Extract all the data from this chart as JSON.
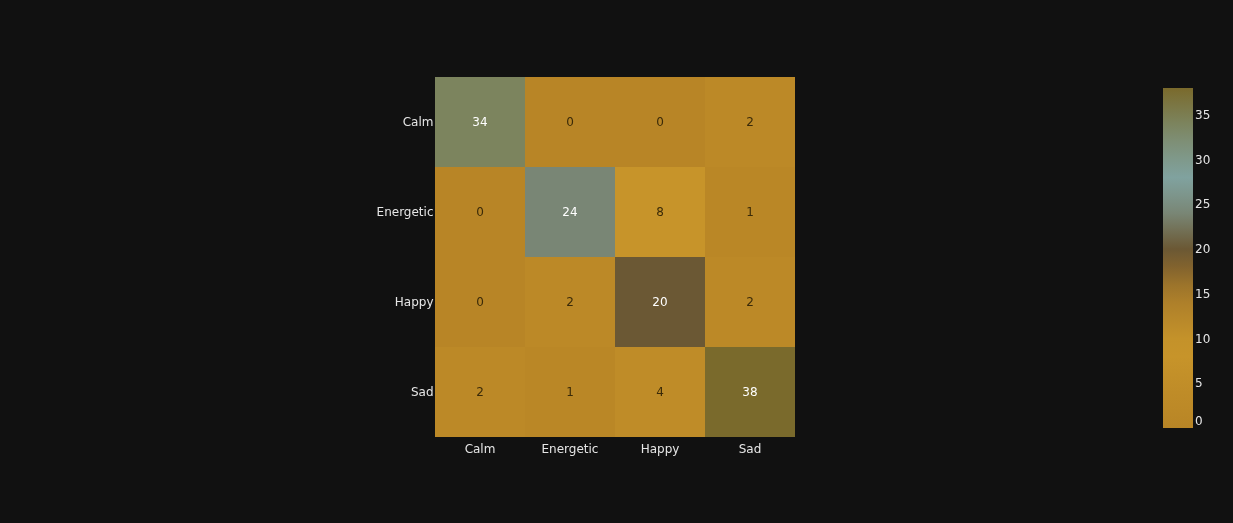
{
  "chart_data": {
    "type": "heatmap",
    "categories": [
      "Calm",
      "Energetic",
      "Happy",
      "Sad"
    ],
    "y_categories": [
      "Calm",
      "Energetic",
      "Happy",
      "Sad"
    ],
    "cells": [
      [
        34,
        0,
        0,
        2
      ],
      [
        0,
        24,
        8,
        1
      ],
      [
        0,
        2,
        20,
        2
      ],
      [
        2,
        1,
        4,
        38
      ]
    ],
    "data_labels": true,
    "clim": [
      0,
      38
    ],
    "cticks": [
      0,
      5,
      10,
      15,
      20,
      25,
      30,
      35
    ]
  }
}
